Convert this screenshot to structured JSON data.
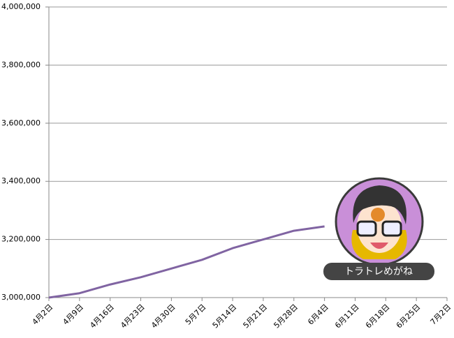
{
  "chart_data": {
    "type": "line",
    "categories": [
      "4月2日",
      "4月9日",
      "4月16日",
      "4月23日",
      "4月30日",
      "5月7日",
      "5月14日",
      "5月21日",
      "5月28日",
      "6月4日",
      "6月11日",
      "6月18日",
      "6月25日",
      "7月2日"
    ],
    "values": [
      3000000,
      3015000,
      3045000,
      3070000,
      3100000,
      3130000,
      3170000,
      3200000,
      3230000,
      3245000,
      null,
      null,
      null,
      null
    ],
    "color": "#8064a2",
    "ylim": [
      3000000,
      4000000
    ],
    "yticks": [
      {
        "value": 3000000,
        "label": "3,000,000"
      },
      {
        "value": 3200000,
        "label": "3,200,000"
      },
      {
        "value": 3400000,
        "label": "3,400,000"
      },
      {
        "value": 3600000,
        "label": "3,600,000"
      },
      {
        "value": 3800000,
        "label": "3,800,000"
      },
      {
        "value": 4000000,
        "label": "4,000,000"
      }
    ],
    "grid": true,
    "badge": "トラトレめがね"
  }
}
